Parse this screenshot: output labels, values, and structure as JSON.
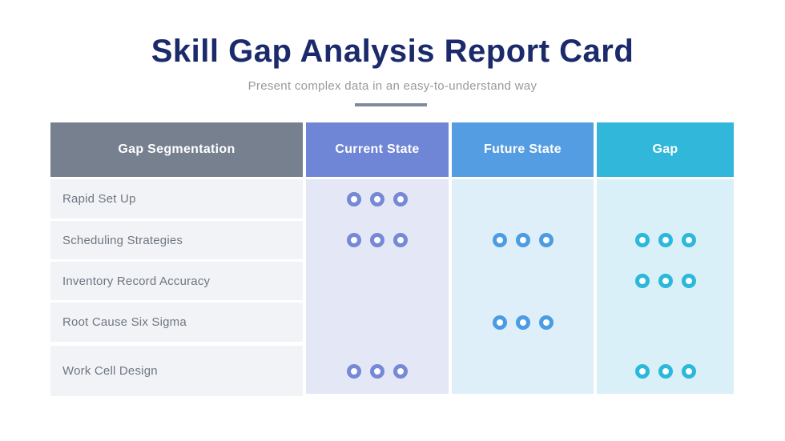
{
  "title": "Skill Gap Analysis Report Card",
  "subtitle": "Present complex data in an easy-to-understand way",
  "accent_colors": {
    "title_navy": "#1A2A6B",
    "subtitle_gray": "#999999",
    "divider_gray_blue": "#7E8B9D",
    "row_label_gray": "#6E7781"
  },
  "chart_data": {
    "type": "table",
    "title": "Skill Gap Analysis Report Card",
    "columns": [
      {
        "id": "segmentation",
        "label": "Gap Segmentation",
        "header_color": "#76808E",
        "body_color": "#F2F3F7",
        "dot_color": null
      },
      {
        "id": "current-state",
        "label": "Current State",
        "header_color": "#6F85D6",
        "body_color": "#E4E8F6",
        "dot_color": "#7589D6"
      },
      {
        "id": "future-state",
        "label": "Future State",
        "header_color": "#559DE2",
        "body_color": "#DEEFF9",
        "dot_color": "#4B9CE2"
      },
      {
        "id": "gap",
        "label": "Gap",
        "header_color": "#30B7D9",
        "body_color": "#D9F0F8",
        "dot_color": "#2BB8DA"
      }
    ],
    "rows": [
      {
        "label": "Rapid Set Up",
        "dots": {
          "current-state": 3,
          "future-state": 0,
          "gap": 0
        }
      },
      {
        "label": "Scheduling Strategies",
        "dots": {
          "current-state": 3,
          "future-state": 3,
          "gap": 3
        }
      },
      {
        "label": "Inventory Record Accuracy",
        "dots": {
          "current-state": 0,
          "future-state": 0,
          "gap": 3
        }
      },
      {
        "label": "Root Cause Six Sigma",
        "dots": {
          "current-state": 0,
          "future-state": 3,
          "gap": 0
        }
      },
      {
        "label": "Work Cell Design",
        "dots": {
          "current-state": 3,
          "future-state": 0,
          "gap": 3
        }
      }
    ]
  }
}
